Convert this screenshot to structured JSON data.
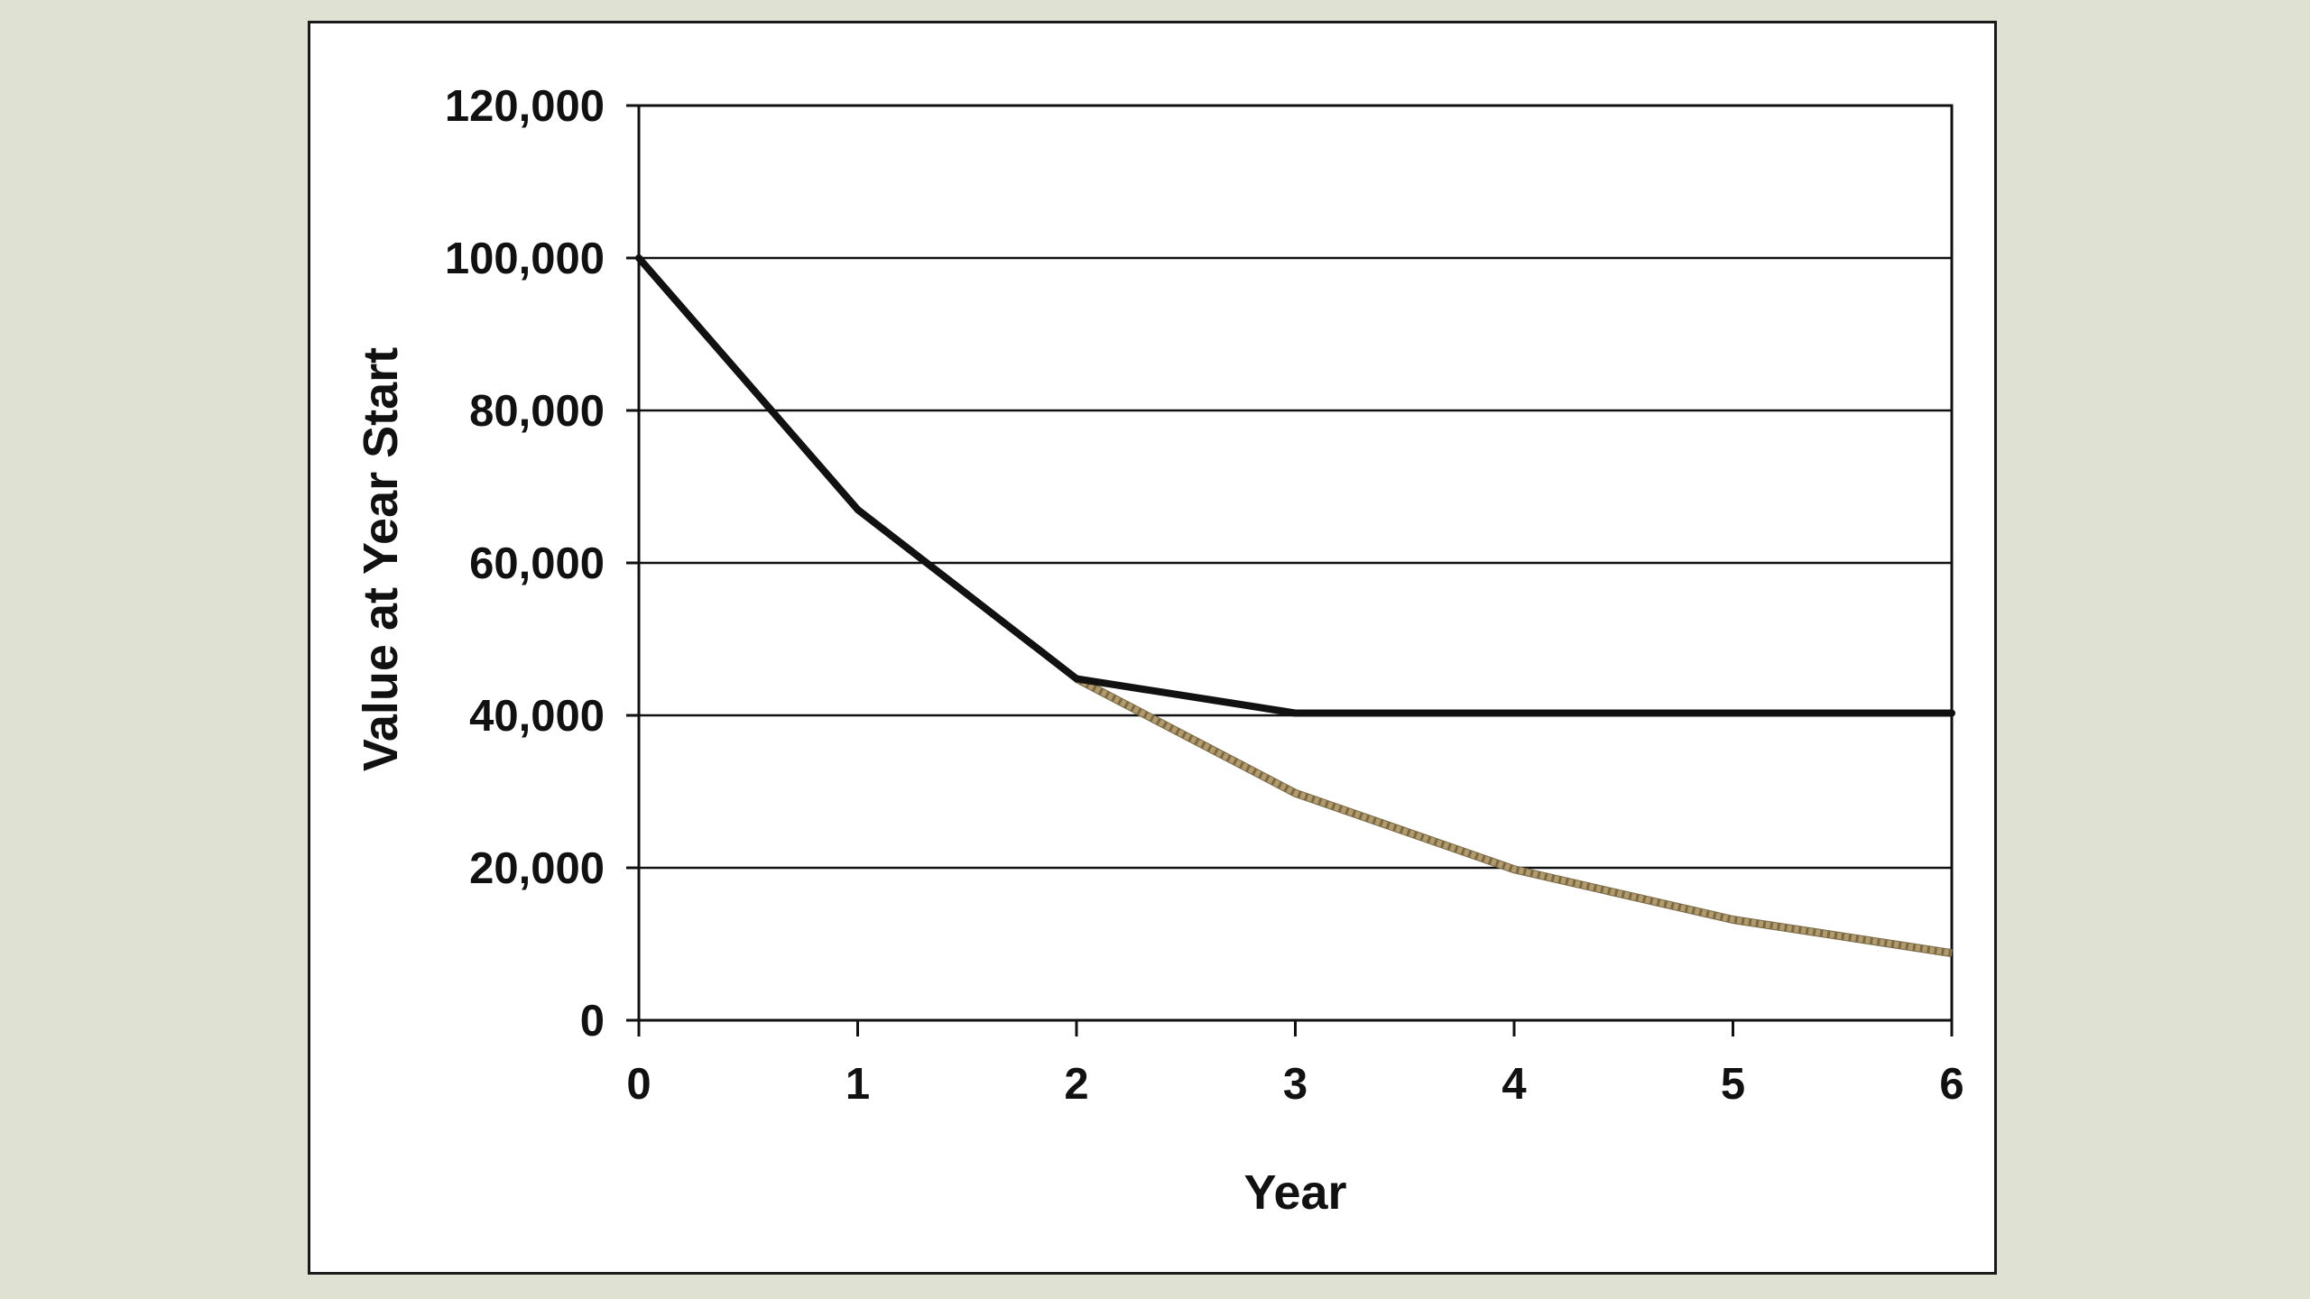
{
  "chart_data": {
    "type": "line",
    "title": "",
    "xlabel": "Year",
    "ylabel": "Value at Year Start",
    "xlim": [
      0,
      6
    ],
    "ylim": [
      0,
      120000
    ],
    "x_ticks": [
      0,
      1,
      2,
      3,
      4,
      5,
      6
    ],
    "x_tick_labels": [
      "0",
      "1",
      "2",
      "3",
      "4",
      "5",
      "6"
    ],
    "y_ticks": [
      0,
      20000,
      40000,
      60000,
      80000,
      100000,
      120000
    ],
    "y_tick_labels": [
      "0",
      "20,000",
      "40,000",
      "60,000",
      "80,000",
      "100,000",
      "120,000"
    ],
    "grid": "horizontal",
    "legend": "none",
    "series": [
      {
        "style": "solid",
        "color": "#111111",
        "x": [
          0,
          1,
          2,
          3,
          4,
          5,
          6
        ],
        "values": [
          100000,
          67000,
          44800,
          40300,
          40300,
          40300,
          40300
        ]
      },
      {
        "style": "dotted",
        "color": "#b39a6a",
        "x": [
          2,
          3,
          4,
          5,
          6
        ],
        "values": [
          44800,
          29800,
          19800,
          13200,
          8800
        ]
      }
    ]
  }
}
